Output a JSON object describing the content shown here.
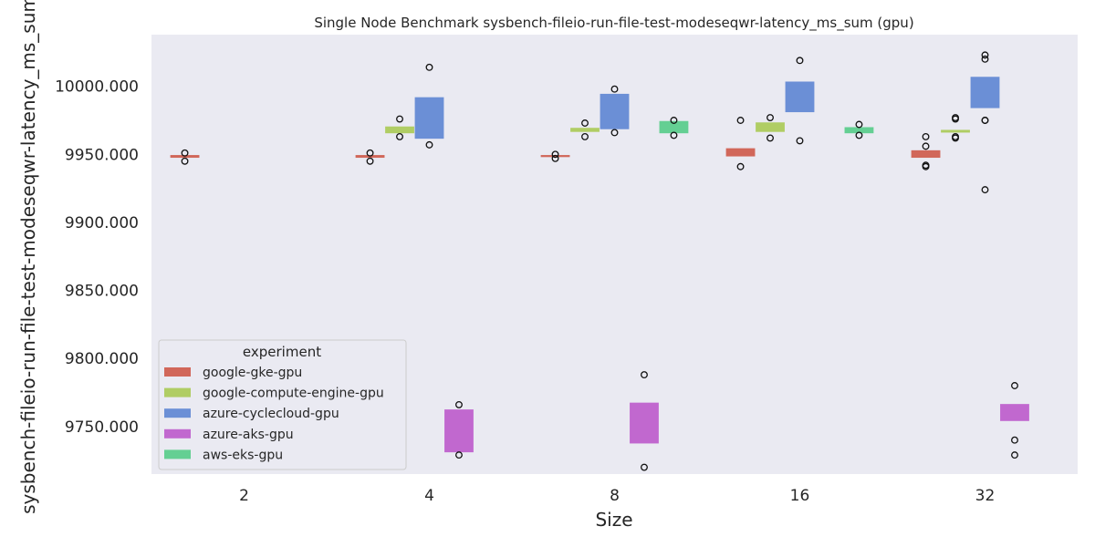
{
  "chart_data": {
    "type": "box",
    "title": "Single Node Benchmark sysbench-fileio-run-file-test-modeseqwr-latency_ms_sum (gpu)",
    "xlabel": "Size",
    "ylabel": "sysbench-fileio-run-file-test-modeseqwr-latency_ms_sum",
    "categories": [
      "2",
      "4",
      "8",
      "16",
      "32"
    ],
    "y_ticks": [
      9750,
      9800,
      9850,
      9900,
      9950,
      10000
    ],
    "y_tick_labels": [
      "9750.000",
      "9800.000",
      "9850.000",
      "9900.000",
      "9950.000",
      "10000.000"
    ],
    "ylim": [
      9715,
      10038
    ],
    "grid": false,
    "legend": {
      "title": "experiment",
      "placement": "lower-left"
    },
    "series": [
      {
        "name": "google-gke-gpu",
        "color": "#d1675a",
        "boxes": [
          {
            "category": "2",
            "q1": 9947.5,
            "q3": 9949.5,
            "outliers": [
              9951,
              9945
            ]
          },
          {
            "category": "4",
            "q1": 9947.5,
            "q3": 9949.5,
            "outliers": [
              9951,
              9945
            ]
          },
          {
            "category": "8",
            "q1": 9948.0,
            "q3": 9949.5,
            "outliers": [
              9950,
              9947
            ]
          },
          {
            "category": "16",
            "q1": 9948.5,
            "q3": 9954.5,
            "outliers": [
              9975,
              9941
            ]
          },
          {
            "category": "32",
            "q1": 9947.5,
            "q3": 9953.0,
            "outliers": [
              9963,
              9956,
              9942,
              9941
            ]
          }
        ]
      },
      {
        "name": "google-compute-engine-gpu",
        "color": "#b0cd64",
        "boxes": [
          {
            "category": "4",
            "q1": 9965.5,
            "q3": 9970.5,
            "outliers": [
              9976,
              9963
            ]
          },
          {
            "category": "8",
            "q1": 9966.5,
            "q3": 9969.5,
            "outliers": [
              9973,
              9963
            ]
          },
          {
            "category": "16",
            "q1": 9966.5,
            "q3": 9973.5,
            "outliers": [
              9977,
              9962
            ]
          },
          {
            "category": "32",
            "q1": 9966.0,
            "q3": 9968.0,
            "outliers": [
              9977,
              9976,
              9963,
              9962
            ]
          }
        ]
      },
      {
        "name": "azure-cyclecloud-gpu",
        "color": "#6b8fd6",
        "boxes": [
          {
            "category": "4",
            "q1": 9961.5,
            "q3": 9992.0,
            "outliers": [
              10014,
              9957
            ]
          },
          {
            "category": "8",
            "q1": 9968.5,
            "q3": 9994.5,
            "outliers": [
              9998,
              9966
            ]
          },
          {
            "category": "16",
            "q1": 9981.0,
            "q3": 10003.5,
            "outliers": [
              10019,
              9960
            ]
          },
          {
            "category": "32",
            "q1": 9984.0,
            "q3": 10007.0,
            "outliers": [
              10023,
              10020,
              9975,
              9975,
              9924
            ]
          }
        ]
      },
      {
        "name": "azure-aks-gpu",
        "color": "#c168cf",
        "boxes": [
          {
            "category": "4",
            "q1": 9731.0,
            "q3": 9762.5,
            "outliers": [
              9766,
              9729
            ]
          },
          {
            "category": "8",
            "q1": 9737.5,
            "q3": 9767.5,
            "outliers": [
              9788,
              9720
            ]
          },
          {
            "category": "32",
            "q1": 9754.0,
            "q3": 9766.5,
            "outliers": [
              9780,
              9740,
              9729
            ]
          }
        ]
      },
      {
        "name": "aws-eks-gpu",
        "color": "#64cf93",
        "boxes": [
          {
            "category": "8",
            "q1": 9965.5,
            "q3": 9974.5,
            "outliers": [
              9975,
              9964
            ]
          },
          {
            "category": "16",
            "q1": 9965.5,
            "q3": 9970.0,
            "outliers": [
              9972,
              9964
            ]
          }
        ]
      }
    ]
  }
}
